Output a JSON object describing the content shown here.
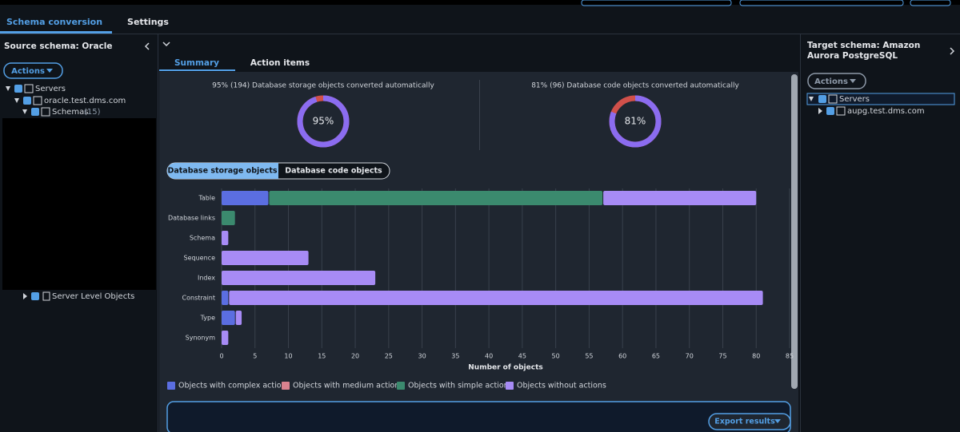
{
  "top_tabs": [
    "Schema conversion",
    "Settings"
  ],
  "source_panel": {
    "title": "Source schema: Oracle",
    "actions": "Actions",
    "tree": {
      "servers": "Servers",
      "server": "oracle.test.dms.com",
      "schemas": "Schemas",
      "schemas_count": "(15)",
      "server_level": "Server Level Objects"
    }
  },
  "summary_tabs": [
    "Summary",
    "Action items"
  ],
  "donuts": [
    {
      "caption": "95% (194) Database storage objects converted automatically",
      "value": 95,
      "value_label": "95%"
    },
    {
      "caption": "81% (96) Database code objects converted automatically",
      "value": 81,
      "value_label": "81%"
    }
  ],
  "toggle": [
    "Database storage objects",
    "Database code objects"
  ],
  "chart_data": {
    "type": "stacked-bar-horizontal",
    "categories": [
      "Table",
      "Database links",
      "Schema",
      "Sequence",
      "Index",
      "Constraint",
      "Type",
      "Synonym"
    ],
    "series": [
      {
        "name": "Objects with complex actions",
        "color": "#5b6ee1",
        "values": [
          7,
          0,
          0,
          0,
          0,
          1,
          2,
          0
        ]
      },
      {
        "name": "Objects with medium actions",
        "color": "#d9828f",
        "values": [
          0,
          0,
          0,
          0,
          0,
          0,
          0,
          0
        ]
      },
      {
        "name": "Objects with simple actions",
        "color": "#3b8a6e",
        "values": [
          50,
          2,
          0,
          0,
          0,
          0,
          0,
          0
        ]
      },
      {
        "name": "Objects without actions",
        "color": "#a78bf5",
        "values": [
          23,
          0,
          1,
          13,
          23,
          80,
          1,
          1
        ]
      }
    ],
    "xlim": [
      0,
      85
    ],
    "xticks": [
      0,
      5,
      10,
      15,
      20,
      25,
      30,
      35,
      40,
      45,
      50,
      55,
      60,
      65,
      70,
      75,
      80,
      85
    ],
    "xlabel": "Number of objects",
    "grid": true
  },
  "export": "Export results",
  "target_panel": {
    "title": "Target schema: Amazon Aurora PostgreSQL",
    "actions": "Actions",
    "tree": {
      "servers": "Servers",
      "server": "aupg.test.dms.com"
    }
  }
}
